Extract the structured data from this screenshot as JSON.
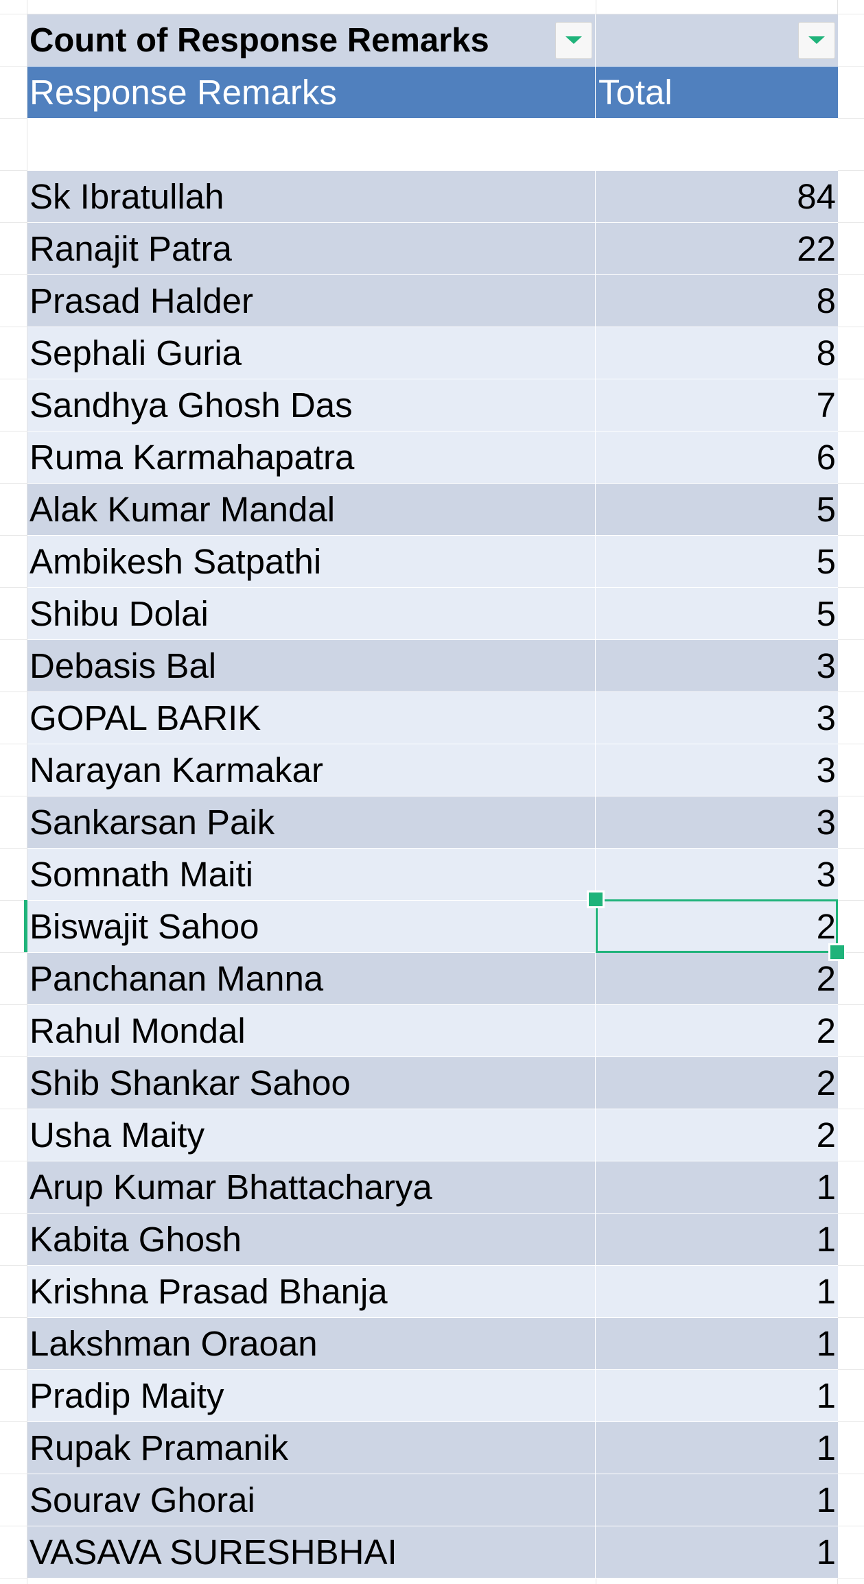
{
  "pivot": {
    "filter_label": "Count of Response Remarks",
    "row_header": "Response Remarks",
    "value_header": "Total",
    "accent_color": "#1fb37a",
    "header_color": "#5080be",
    "band_dark": "#cdd5e4",
    "band_light": "#e6ecf6",
    "rows": [
      {
        "name": "Sk Ibratullah",
        "total": "84"
      },
      {
        "name": "Ranajit Patra",
        "total": "22"
      },
      {
        "name": "Prasad Halder",
        "total": "8"
      },
      {
        "name": "Sephali Guria",
        "total": "8"
      },
      {
        "name": "Sandhya Ghosh Das",
        "total": "7"
      },
      {
        "name": "Ruma Karmahapatra",
        "total": "6"
      },
      {
        "name": "Alak Kumar Mandal",
        "total": "5"
      },
      {
        "name": "Ambikesh Satpathi",
        "total": "5"
      },
      {
        "name": "Shibu Dolai",
        "total": "5"
      },
      {
        "name": "Debasis Bal",
        "total": "3"
      },
      {
        "name": "GOPAL BARIK",
        "total": "3"
      },
      {
        "name": "Narayan Karmakar",
        "total": "3"
      },
      {
        "name": "Sankarsan Paik",
        "total": "3"
      },
      {
        "name": "Somnath Maiti",
        "total": "3"
      },
      {
        "name": "Biswajit Sahoo",
        "total": "2"
      },
      {
        "name": "Panchanan Manna",
        "total": "2"
      },
      {
        "name": "Rahul Mondal",
        "total": "2"
      },
      {
        "name": "Shib Shankar Sahoo",
        "total": "2"
      },
      {
        "name": "Usha Maity",
        "total": "2"
      },
      {
        "name": "Arup Kumar Bhattacharya",
        "total": "1"
      },
      {
        "name": "Kabita Ghosh",
        "total": "1"
      },
      {
        "name": "Krishna Prasad Bhanja",
        "total": "1"
      },
      {
        "name": "Lakshman Oraoan",
        "total": "1"
      },
      {
        "name": "Pradip Maity",
        "total": "1"
      },
      {
        "name": "Rupak Pramanik",
        "total": "1"
      },
      {
        "name": "Sourav Ghorai",
        "total": "1"
      },
      {
        "name": "VASAVA SURESHBHAI",
        "total": "1"
      }
    ],
    "selected_row_name": "Biswajit Sahoo"
  }
}
